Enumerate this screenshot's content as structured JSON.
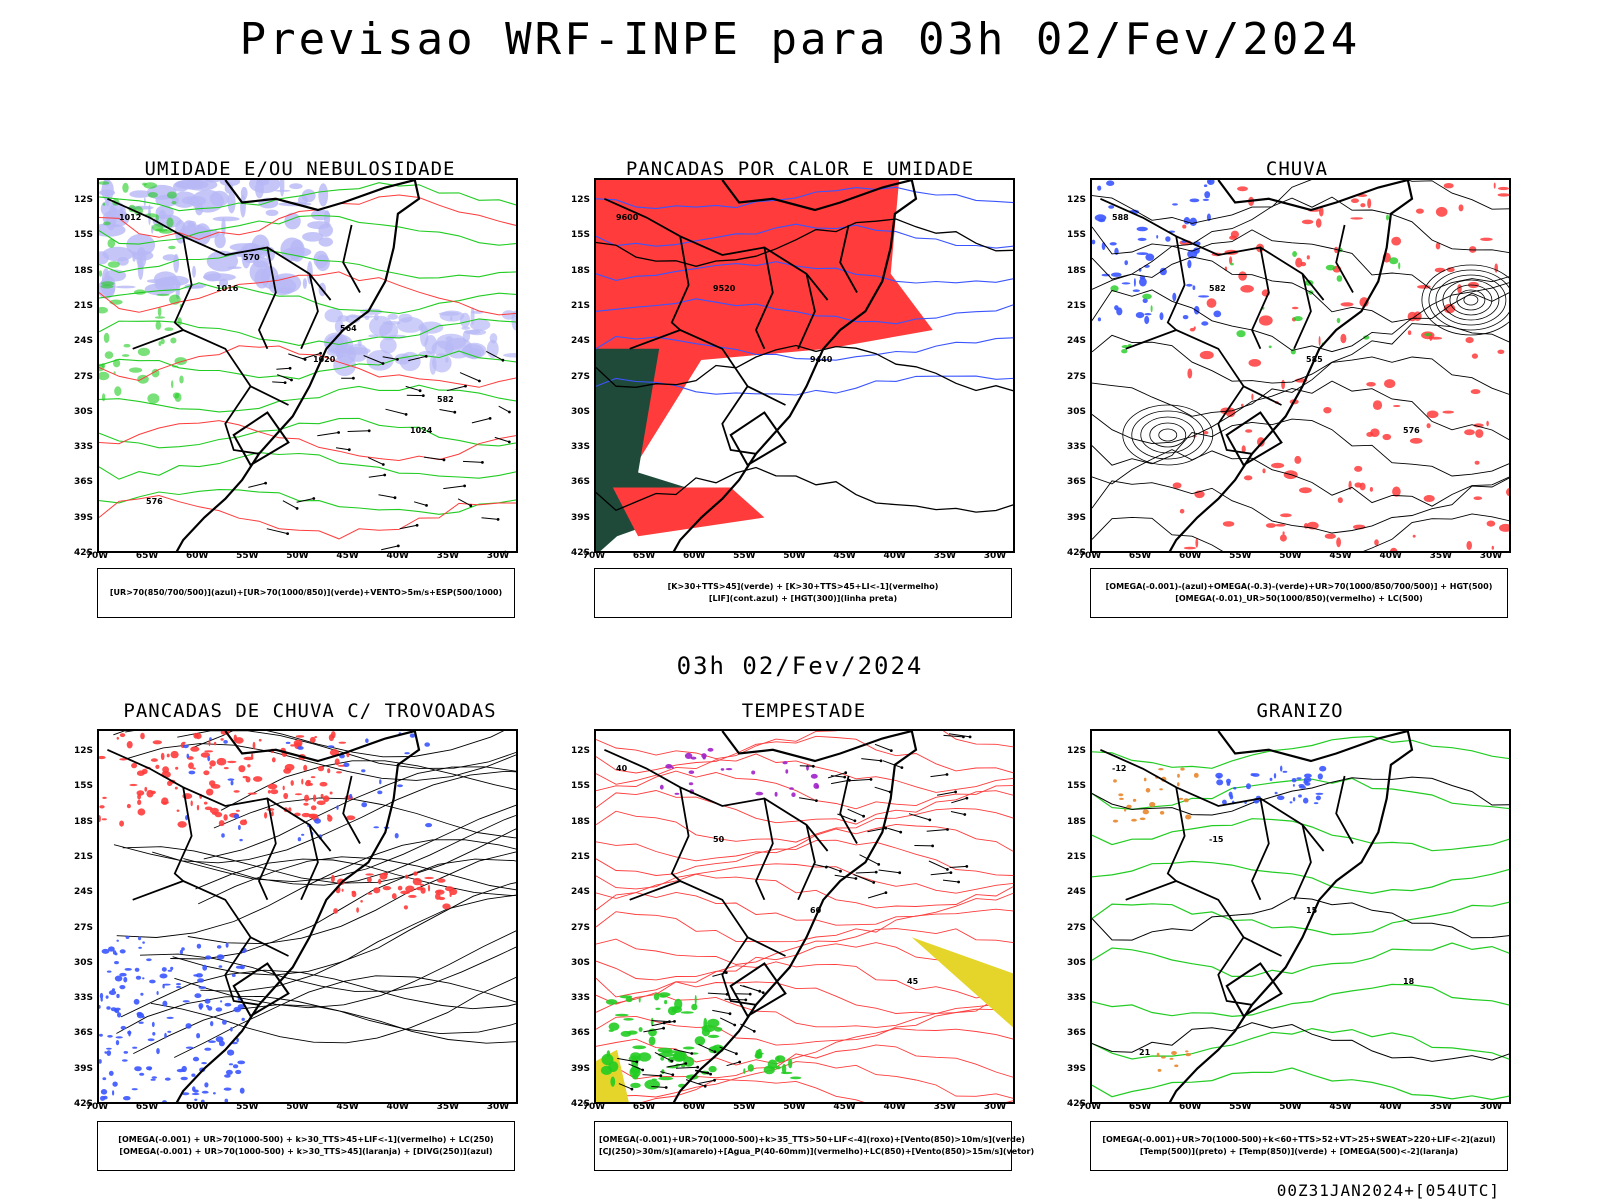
{
  "title": "Previsao WRF-INPE  para 03h 02/Fev/2024",
  "mid_title": "03h 02/Fev/2024",
  "footer_stamp": "00Z31JAN2024+[054UTC]",
  "axes": {
    "lat_ticks": [
      "12S",
      "15S",
      "18S",
      "21S",
      "24S",
      "27S",
      "30S",
      "33S",
      "36S",
      "39S",
      "42S"
    ],
    "lon_ticks": [
      "70W",
      "65W",
      "60W",
      "55W",
      "50W",
      "45W",
      "40W",
      "35W",
      "30W"
    ]
  },
  "colors": {
    "blue": "#3a55ff",
    "light_blue": "#b7b8f5",
    "green": "#22cc22",
    "red": "#ff3b3b",
    "dark_green": "#1f4a3a",
    "yellow": "#e5d52a",
    "purple": "#a020c8",
    "orange": "#e8862a",
    "black": "#000000"
  },
  "panels": [
    {
      "title": "UMIDADE E/OU NEBULOSIDADE",
      "legend": [
        "[UR>70(850/700/500)](azul)+[UR>70(1000/850)](verde)+VENTO>5m/s+ESP(500/1000)"
      ],
      "contour_labels": [
        "1012",
        "1016",
        "1020",
        "1024",
        "576",
        "570",
        "564",
        "582"
      ]
    },
    {
      "title": "PANCADAS POR CALOR E UMIDADE",
      "legend": [
        "[K>30+TTS>45](verde) + [K>30+TTS>45+LI<-1](vermelho)",
        "[LIF](cont.azul) + [HGT(300)](linha preta)"
      ],
      "contour_labels": [
        "9600",
        "9520",
        "9440"
      ]
    },
    {
      "title": "CHUVA",
      "legend": [
        "[OMEGA(-0.001)-(azul)+OMEGA(-0.3)-(verde)+UR>70(1000/850/700/500)] + HGT(500)",
        "[OMEGA(-0.01)_UR>50(1000/850)(vermelho) + LC(500)"
      ],
      "contour_labels": [
        "588",
        "582",
        "585",
        "576"
      ]
    },
    {
      "title": "PANCADAS DE CHUVA C/ TROVOADAS",
      "legend": [
        "[OMEGA(-0.001) + UR>70(1000-500) + k>30_TTS>45+LIF<-1](vermelho) + LC(250)",
        "[OMEGA(-0.001) + UR>70(1000-500) + k>30_TTS>45](laranja) + [DIVG(250)](azul)"
      ],
      "contour_labels": []
    },
    {
      "title": "TEMPESTADE",
      "legend": [
        "[OMEGA(-0.001)+UR>70(1000-500)+k>35_TTS>50+LIF<-4](roxo)+[Vento(850)>10m/s](verde)",
        "[CJ(250)>30m/s](amarelo)+[Agua_P(40-60mm)](vermelho)+LC(850)+[Vento(850)>15m/s](vetor)"
      ],
      "contour_labels": [
        "40",
        "50",
        "60",
        "45"
      ]
    },
    {
      "title": "GRANIZO",
      "legend": [
        "[OMEGA(-0.001)+UR>70(1000-500)+k<60+TTS>52+VT>25+SWEAT>220+LIF<-2](azul)",
        "[Temp(500)](preto) + [Temp(850)](verde) + [OMEGA(500)<-2](laranja)"
      ],
      "contour_labels": [
        "-12",
        "-15",
        "15",
        "18",
        "21"
      ]
    }
  ]
}
